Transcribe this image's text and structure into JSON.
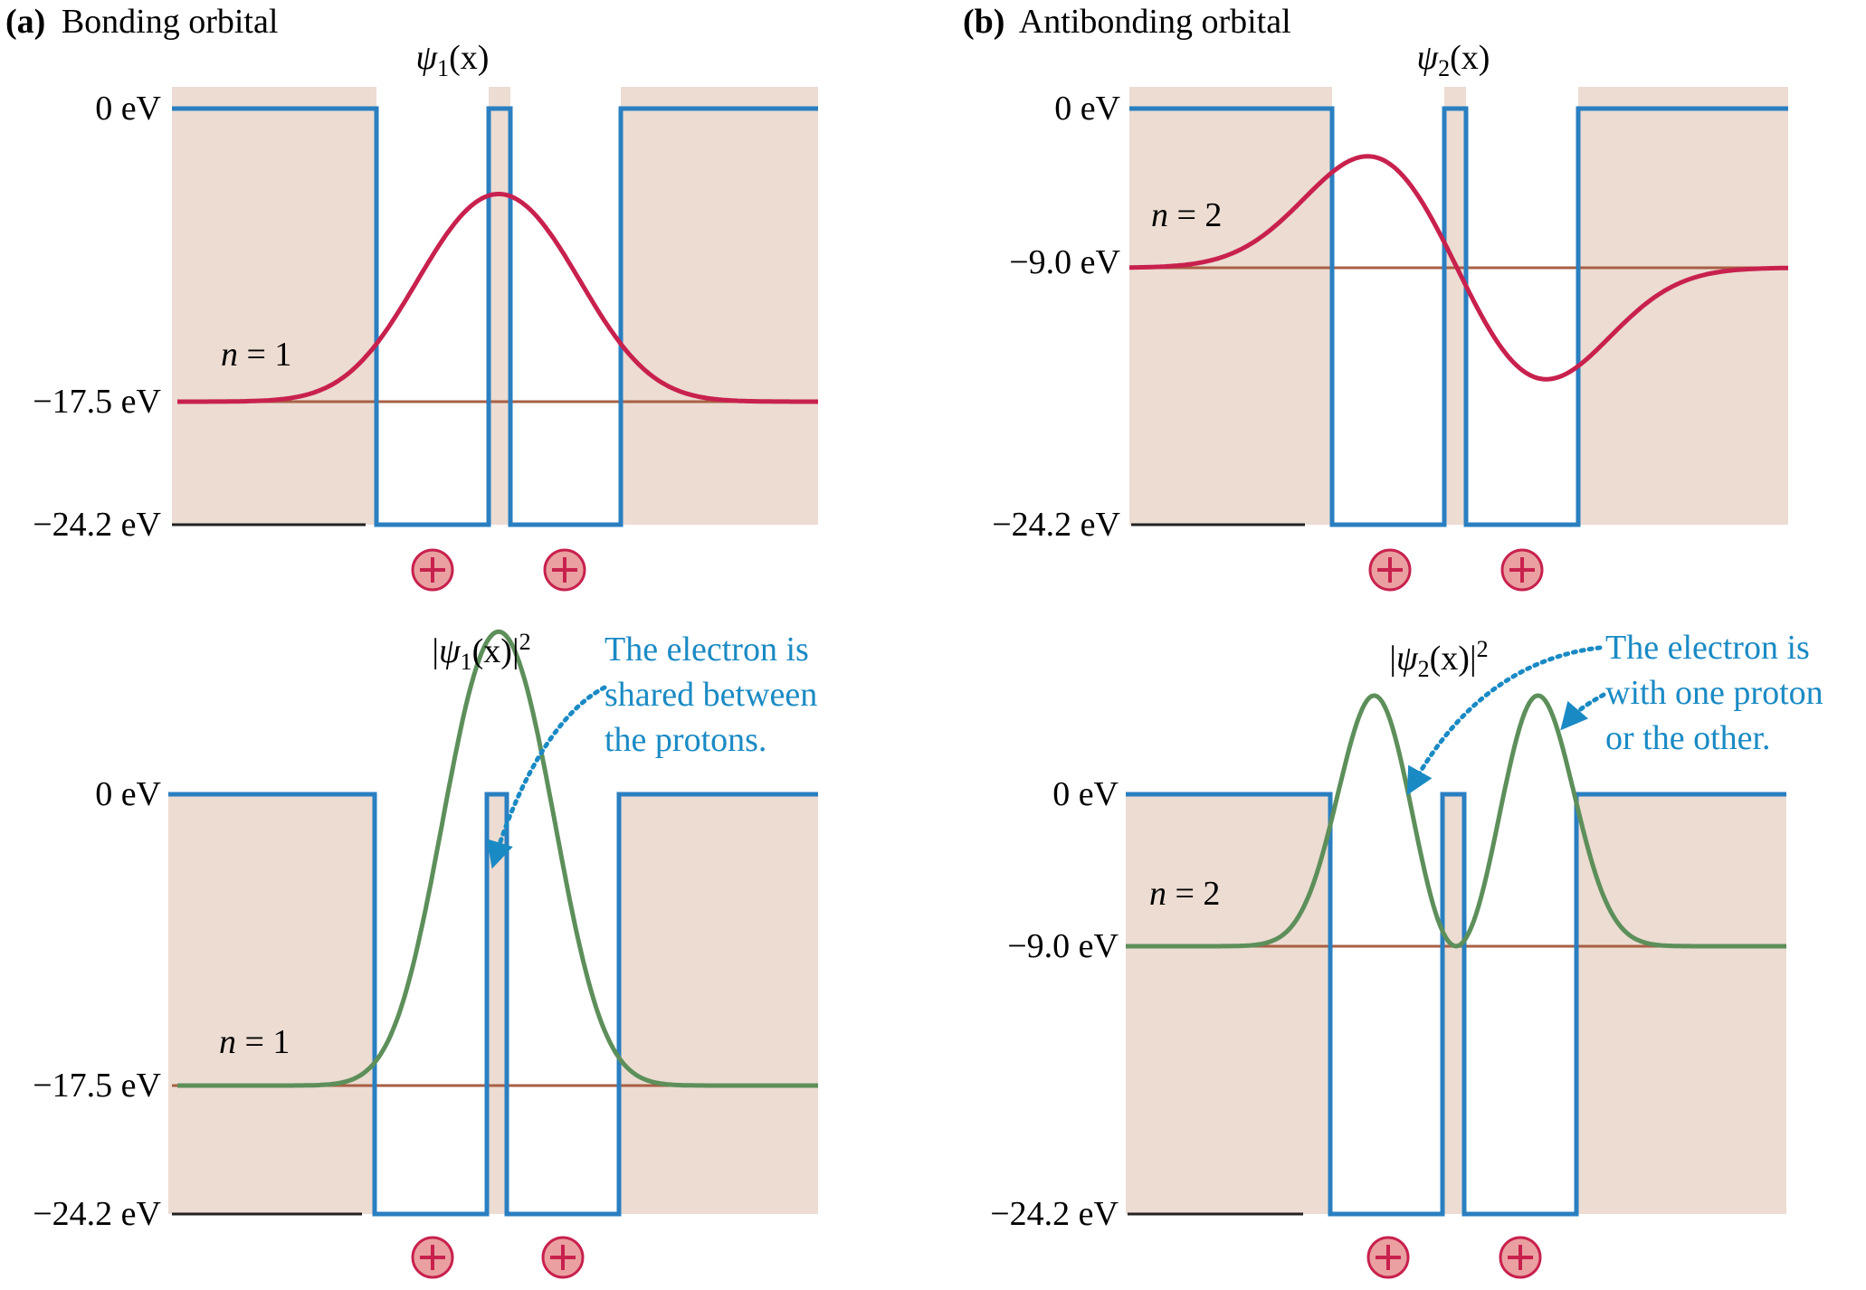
{
  "colors": {
    "forbidden_region": "#ecdcd2",
    "well": "#2a7fc1",
    "wavefunction": "#c8214e",
    "probability": "#5d8f5a",
    "energy_level": "#a85f44",
    "baseline": "#222222",
    "annotation": "#1a8ac4",
    "proton_fill": "#eaa0a0",
    "proton_stroke": "#c8214e"
  },
  "icons": {
    "proton": "plus-in-circle-icon",
    "arrow": "dotted-curved-arrow-icon"
  },
  "panel_a": {
    "letter": "(a)",
    "title": "Bonding orbital",
    "top": {
      "label_psi": "ψ",
      "label_sub": "1",
      "label_arg": "(x)",
      "energy_labels": [
        "0 eV",
        "−17.5 eV",
        "−24.2 eV"
      ],
      "level_label_n": "n",
      "level_label_rest": " = 1"
    },
    "bottom": {
      "label_psi": "ψ",
      "label_sub": "1",
      "label_arg": "(x)",
      "label_exp": "2",
      "energy_labels": [
        "0 eV",
        "−17.5 eV",
        "−24.2 eV"
      ],
      "level_label_n": "n",
      "level_label_rest": " = 1",
      "annotation_lines": [
        "The electron is",
        "shared between",
        "the protons."
      ]
    }
  },
  "panel_b": {
    "letter": "(b)",
    "title": "Antibonding orbital",
    "top": {
      "label_psi": "ψ",
      "label_sub": "2",
      "label_arg": "(x)",
      "energy_labels": [
        "0 eV",
        "−9.0 eV",
        "−24.2 eV"
      ],
      "level_label_n": "n",
      "level_label_rest": " = 2"
    },
    "bottom": {
      "label_psi": "ψ",
      "label_sub": "2",
      "label_arg": "(x)",
      "label_exp": "2",
      "energy_labels": [
        "0 eV",
        "−9.0 eV",
        "−24.2 eV"
      ],
      "level_label_n": "n",
      "level_label_rest": " = 2",
      "annotation_lines": [
        "The electron is",
        "with one proton",
        "or the other."
      ]
    }
  },
  "proton_symbol": "+"
}
